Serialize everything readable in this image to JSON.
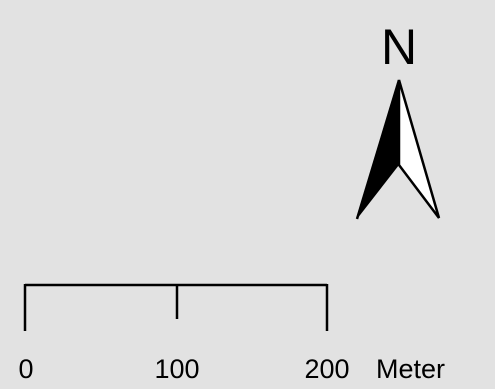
{
  "north_arrow": {
    "label": "N",
    "icon": "north-arrow-icon"
  },
  "scale_bar": {
    "ticks": [
      "0",
      "100",
      "200"
    ],
    "unit": "Meter"
  },
  "colors": {
    "background": "#e2e2e2",
    "ink": "#000000",
    "arrow_light_half": "#ffffff"
  }
}
